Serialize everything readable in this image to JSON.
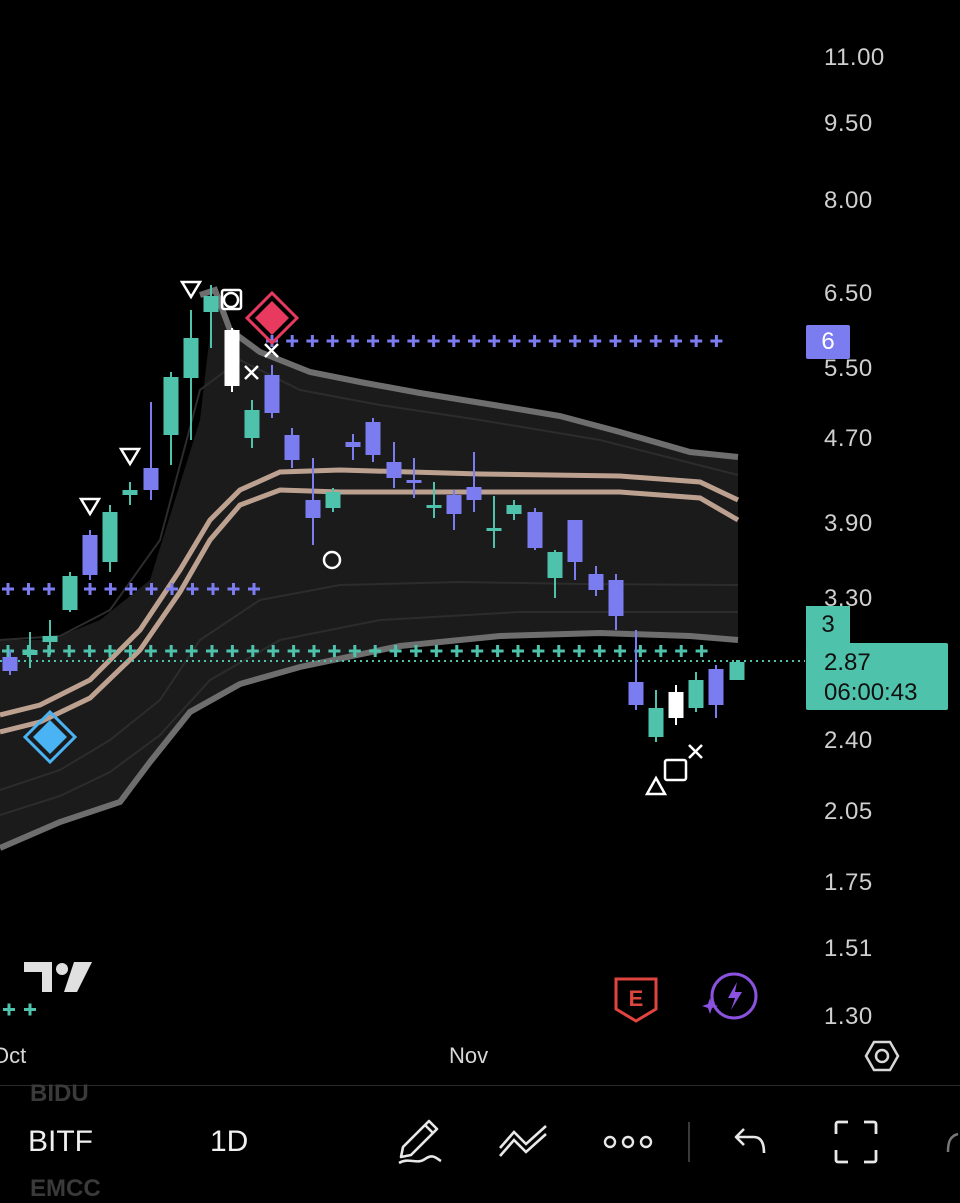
{
  "symbol": {
    "ticker": "BITF",
    "interval": "1D",
    "watchlist_prev": "BIDU",
    "watchlist_next": "EMCC"
  },
  "price_axis": {
    "labels": [
      "11.00",
      "9.50",
      "8.00",
      "6.50",
      "5.50",
      "4.70",
      "3.90",
      "3.30",
      "2.40",
      "2.05",
      "1.75",
      "1.51",
      "1.30"
    ]
  },
  "badges": {
    "level_upper": "6",
    "level_lower": "3",
    "last_price": "2.87",
    "countdown": "06:00:43"
  },
  "time_axis": {
    "labels": [
      "Oct",
      "Nov"
    ]
  },
  "overlay_icons": {
    "logo": "tradingview-logo-icon",
    "earnings": "E",
    "spark": "lightning-icon"
  },
  "colors": {
    "background": "#000000",
    "bull_candle": "#4fc2ac",
    "bear_candle": "#7b7cf0",
    "highlight_candle": "#ffffff",
    "band_outer": "#6e6e6e",
    "band_mid": "#d9b9a4",
    "sell_signal": "#e8395f",
    "buy_signal": "#4ab3f4",
    "earnings_icon": "#e0443e",
    "spark_icon": "#8b52e0"
  },
  "toolbar": {
    "icons": [
      "pen-icon",
      "indicators-icon",
      "more-icon",
      "undo-icon",
      "fullscreen-icon"
    ]
  }
}
